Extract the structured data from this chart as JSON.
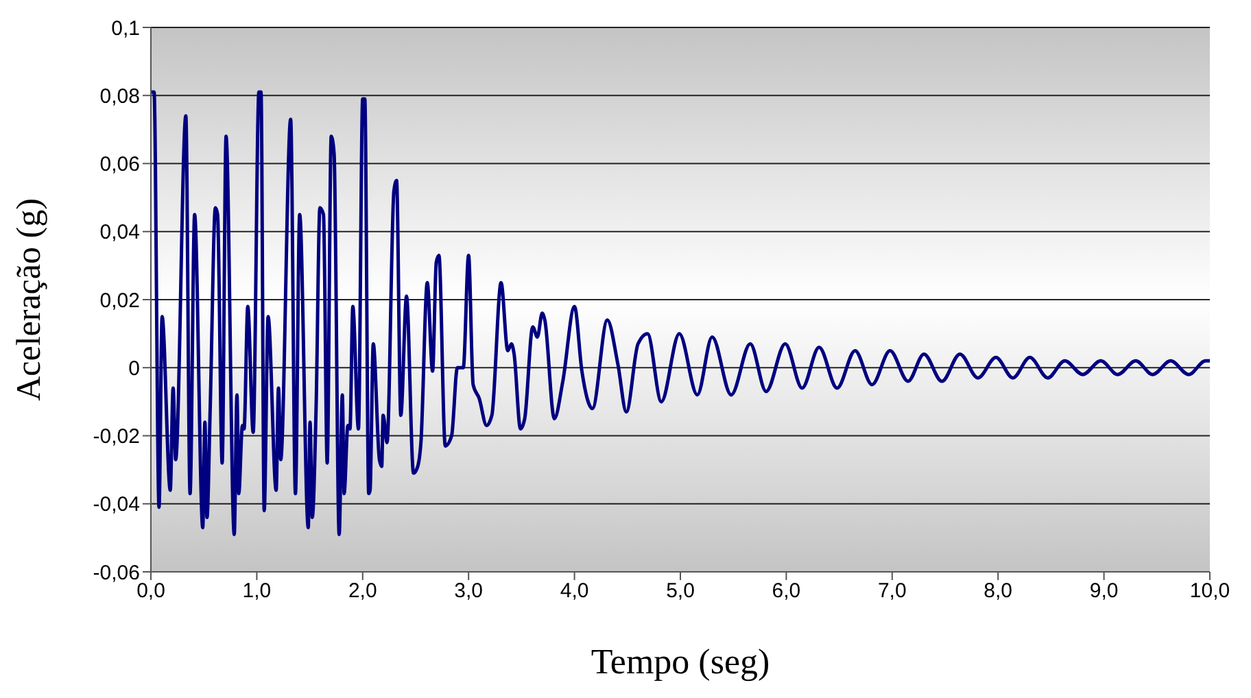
{
  "chart_data": {
    "type": "line",
    "xlabel": "Tempo (seg)",
    "ylabel": "Aceleração (g)",
    "xlim": [
      0,
      10
    ],
    "xticks": [
      {
        "value": 0,
        "label": "0,0"
      },
      {
        "value": 1,
        "label": "1,0"
      },
      {
        "value": 2,
        "label": "2,0"
      },
      {
        "value": 3,
        "label": "3,0"
      },
      {
        "value": 4,
        "label": "4,0"
      },
      {
        "value": 5,
        "label": "5,0"
      },
      {
        "value": 6,
        "label": "6,0"
      },
      {
        "value": 7,
        "label": "7,0"
      },
      {
        "value": 8,
        "label": "8,0"
      },
      {
        "value": 9,
        "label": "9,0"
      },
      {
        "value": 10,
        "label": "10,0"
      }
    ],
    "ylim": [
      -0.06,
      0.1
    ],
    "yticks": [
      {
        "value": -0.06,
        "label": "-0,06"
      },
      {
        "value": -0.04,
        "label": "-0,04"
      },
      {
        "value": -0.02,
        "label": "-0,02"
      },
      {
        "value": 0,
        "label": "0"
      },
      {
        "value": 0.02,
        "label": "0,02"
      },
      {
        "value": 0.04,
        "label": "0,04"
      },
      {
        "value": 0.06,
        "label": "0,06"
      },
      {
        "value": 0.08,
        "label": "0,08"
      },
      {
        "value": 0.1,
        "label": "0,1"
      }
    ],
    "grid": "y",
    "marker": "none",
    "line_style": "solid",
    "series": [
      {
        "color": "#000080",
        "x": [
          0,
          0.03,
          0.077,
          0.106,
          0.183,
          0.21,
          0.234,
          0.33,
          0.37,
          0.413,
          0.49,
          0.51,
          0.53,
          0.56,
          0.609,
          0.63,
          0.673,
          0.71,
          0.787,
          0.813,
          0.83,
          0.864,
          0.88,
          0.915,
          0.966,
          1.02,
          1.04,
          1.07,
          1.107,
          1.183,
          1.205,
          1.226,
          1.32,
          1.365,
          1.405,
          1.486,
          1.503,
          1.524,
          1.56,
          1.596,
          1.63,
          1.665,
          1.703,
          1.73,
          1.778,
          1.808,
          1.825,
          1.86,
          1.88,
          1.907,
          1.96,
          2.0,
          2.02,
          2.057,
          2.07,
          2.1,
          2.158,
          2.18,
          2.193,
          2.23,
          2.295,
          2.32,
          2.36,
          2.414,
          2.48,
          2.52,
          2.55,
          2.61,
          2.66,
          2.695,
          2.72,
          2.78,
          2.84,
          2.894,
          2.95,
          3.0,
          3.043,
          3.1,
          3.17,
          3.22,
          3.307,
          3.37,
          3.405,
          3.43,
          3.49,
          3.53,
          3.606,
          3.65,
          3.695,
          3.72,
          3.81,
          3.89,
          4.0,
          4.07,
          4.17,
          4.31,
          4.41,
          4.49,
          4.6,
          4.69,
          4.82,
          4.99,
          5.16,
          5.3,
          5.48,
          5.66,
          5.81,
          5.99,
          6.15,
          6.31,
          6.48,
          6.65,
          6.81,
          6.98,
          7.15,
          7.3,
          7.47,
          7.64,
          7.81,
          7.98,
          8.14,
          8.3,
          8.47,
          8.63,
          8.8,
          8.97,
          9.13,
          9.3,
          9.46,
          9.63,
          9.8,
          9.96,
          10
        ],
        "values": [
          0.081,
          0.081,
          -0.041,
          0.015,
          -0.036,
          -0.006,
          -0.027,
          0.074,
          -0.037,
          0.045,
          -0.047,
          -0.016,
          -0.044,
          -0.012,
          0.047,
          0.045,
          -0.028,
          0.068,
          -0.049,
          -0.008,
          -0.037,
          -0.017,
          -0.018,
          0.018,
          -0.019,
          0.081,
          0.081,
          -0.042,
          0.015,
          -0.036,
          -0.006,
          -0.027,
          0.073,
          -0.037,
          0.045,
          -0.047,
          -0.016,
          -0.044,
          -0.012,
          0.047,
          0.045,
          -0.028,
          0.068,
          0.063,
          -0.049,
          -0.008,
          -0.037,
          -0.017,
          -0.018,
          0.018,
          -0.018,
          0.079,
          0.079,
          -0.037,
          -0.036,
          0.007,
          -0.027,
          -0.029,
          -0.014,
          -0.022,
          0.052,
          0.055,
          -0.014,
          0.021,
          -0.031,
          -0.029,
          -0.022,
          0.025,
          -0.001,
          0.031,
          0.033,
          -0.023,
          -0.02,
          0,
          0,
          0.033,
          -0.005,
          -0.009,
          -0.017,
          -0.014,
          0.025,
          0.005,
          0.007,
          0.004,
          -0.018,
          -0.015,
          0.012,
          0.009,
          0.016,
          0.014,
          -0.015,
          -0.004,
          0.018,
          -0.001,
          -0.012,
          0.014,
          0.001,
          -0.013,
          0.007,
          0.01,
          -0.01,
          0.01,
          -0.008,
          0.009,
          -0.008,
          0.007,
          -0.007,
          0.007,
          -0.006,
          0.006,
          -0.006,
          0.005,
          -0.005,
          0.005,
          -0.004,
          0.004,
          -0.004,
          0.004,
          -0.003,
          0.003,
          -0.003,
          0.003,
          -0.003,
          0.002,
          -0.002,
          0.002,
          -0.002,
          0.002,
          -0.002,
          0.002,
          -0.002,
          0.002,
          0.002
        ]
      }
    ]
  }
}
